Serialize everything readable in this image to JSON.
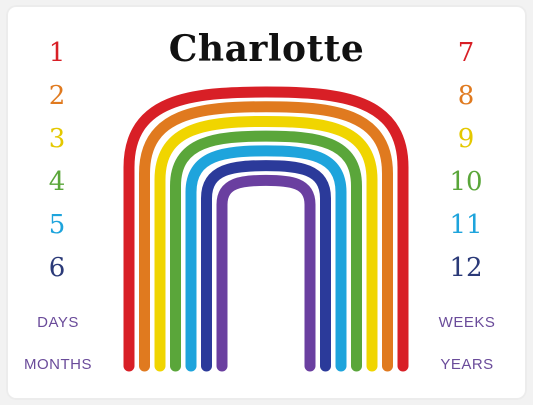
{
  "title": "Charlotte",
  "left_numbers": [
    {
      "label": "1",
      "color": "#d81f26"
    },
    {
      "label": "2",
      "color": "#e07a1f"
    },
    {
      "label": "3",
      "color": "#e4c800"
    },
    {
      "label": "4",
      "color": "#5aa63a"
    },
    {
      "label": "5",
      "color": "#1ea4dc"
    },
    {
      "label": "6",
      "color": "#2b3a78"
    }
  ],
  "right_numbers": [
    {
      "label": "7",
      "color": "#d81f26"
    },
    {
      "label": "8",
      "color": "#e07a1f"
    },
    {
      "label": "9",
      "color": "#e4c800"
    },
    {
      "label": "10",
      "color": "#5aa63a"
    },
    {
      "label": "11",
      "color": "#1ea4dc"
    },
    {
      "label": "12",
      "color": "#2b3a78"
    }
  ],
  "labels": {
    "days": "DAYS",
    "months": "MONTHS",
    "weeks": "WEEKS",
    "years": "YEARS"
  },
  "rainbow_colors": [
    "#d81f26",
    "#e07a1f",
    "#f0d500",
    "#5aa63a",
    "#1ea4dc",
    "#2b3a9a",
    "#6a3fa0"
  ]
}
